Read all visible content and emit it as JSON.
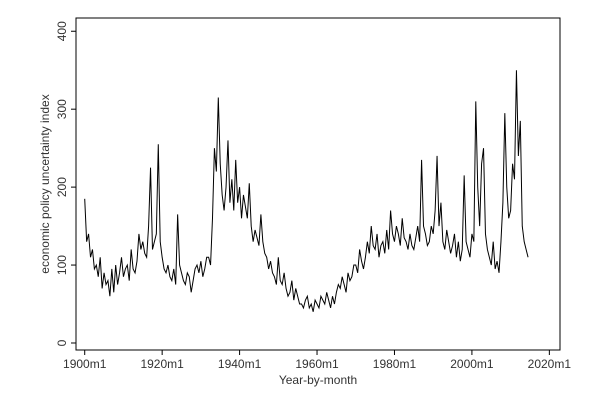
{
  "chart_data": {
    "type": "line",
    "xlabel": "Year-by-month",
    "ylabel": "economic policy uncertainty index",
    "color": "#000000",
    "xlim": [
      "1897m10",
      "2022m10"
    ],
    "xticks": [
      "1900m1",
      "1920m1",
      "1940m1",
      "1960m1",
      "1980m1",
      "2000m1",
      "2020m1"
    ],
    "ylim": [
      -9,
      417
    ],
    "yticks": [
      0,
      100,
      200,
      300,
      400
    ],
    "x": [
      "1900m1",
      "1900m7",
      "1901m1",
      "1901m7",
      "1902m1",
      "1902m7",
      "1903m1",
      "1903m7",
      "1904m1",
      "1904m7",
      "1905m1",
      "1905m7",
      "1906m1",
      "1906m7",
      "1907m1",
      "1907m7",
      "1908m1",
      "1908m7",
      "1909m1",
      "1909m7",
      "1910m1",
      "1910m7",
      "1911m1",
      "1911m7",
      "1912m1",
      "1912m7",
      "1913m1",
      "1913m7",
      "1914m1",
      "1914m7",
      "1915m1",
      "1915m7",
      "1916m1",
      "1916m7",
      "1917m1",
      "1917m7",
      "1918m1",
      "1918m7",
      "1919m1",
      "1919m7",
      "1920m1",
      "1920m7",
      "1921m1",
      "1921m7",
      "1922m1",
      "1922m7",
      "1923m1",
      "1923m7",
      "1924m1",
      "1924m7",
      "1925m1",
      "1925m7",
      "1926m1",
      "1926m7",
      "1927m1",
      "1927m7",
      "1928m1",
      "1928m7",
      "1929m1",
      "1929m7",
      "1930m1",
      "1930m7",
      "1931m1",
      "1931m7",
      "1932m1",
      "1932m7",
      "1933m1",
      "1933m7",
      "1934m1",
      "1934m7",
      "1935m1",
      "1935m7",
      "1936m1",
      "1936m7",
      "1937m1",
      "1937m7",
      "1938m1",
      "1938m7",
      "1939m1",
      "1939m7",
      "1940m1",
      "1940m7",
      "1941m1",
      "1941m7",
      "1942m1",
      "1942m7",
      "1943m1",
      "1943m7",
      "1944m1",
      "1944m7",
      "1945m1",
      "1945m7",
      "1946m1",
      "1946m7",
      "1947m1",
      "1947m7",
      "1948m1",
      "1948m7",
      "1949m1",
      "1949m7",
      "1950m1",
      "1950m7",
      "1951m1",
      "1951m7",
      "1952m1",
      "1952m7",
      "1953m1",
      "1953m7",
      "1954m1",
      "1954m7",
      "1955m1",
      "1955m7",
      "1956m1",
      "1956m7",
      "1957m1",
      "1957m7",
      "1958m1",
      "1958m7",
      "1959m1",
      "1959m7",
      "1960m1",
      "1960m7",
      "1961m1",
      "1961m7",
      "1962m1",
      "1962m7",
      "1963m1",
      "1963m7",
      "1964m1",
      "1964m7",
      "1965m1",
      "1965m7",
      "1966m1",
      "1966m7",
      "1967m1",
      "1967m7",
      "1968m1",
      "1968m7",
      "1969m1",
      "1969m7",
      "1970m1",
      "1970m7",
      "1971m1",
      "1971m7",
      "1972m1",
      "1972m7",
      "1973m1",
      "1973m7",
      "1974m1",
      "1974m7",
      "1975m1",
      "1975m7",
      "1976m1",
      "1976m7",
      "1977m1",
      "1977m7",
      "1978m1",
      "1978m7",
      "1979m1",
      "1979m7",
      "1980m1",
      "1980m7",
      "1981m1",
      "1981m7",
      "1982m1",
      "1982m7",
      "1983m1",
      "1983m7",
      "1984m1",
      "1984m7",
      "1985m1",
      "1985m7",
      "1986m1",
      "1986m7",
      "1987m1",
      "1987m7",
      "1988m1",
      "1988m7",
      "1989m1",
      "1989m7",
      "1990m1",
      "1990m7",
      "1991m1",
      "1991m7",
      "1992m1",
      "1992m7",
      "1993m1",
      "1993m7",
      "1994m1",
      "1994m7",
      "1995m1",
      "1995m7",
      "1996m1",
      "1996m7",
      "1997m1",
      "1997m7",
      "1998m1",
      "1998m7",
      "1999m1",
      "1999m7",
      "2000m1",
      "2000m7",
      "2001m1",
      "2001m7",
      "2002m1",
      "2002m7",
      "2003m1",
      "2003m7",
      "2004m1",
      "2004m7",
      "2005m1",
      "2005m7",
      "2006m1",
      "2006m7",
      "2007m1",
      "2007m7",
      "2008m1",
      "2008m7",
      "2009m1",
      "2009m7",
      "2010m1",
      "2010m7",
      "2011m1",
      "2011m7",
      "2012m1",
      "2012m7",
      "2013m1",
      "2013m7",
      "2014m1",
      "2014m7"
    ],
    "values": [
      185,
      130,
      140,
      110,
      120,
      95,
      100,
      85,
      110,
      70,
      90,
      75,
      80,
      60,
      95,
      65,
      100,
      75,
      90,
      110,
      85,
      95,
      100,
      80,
      120,
      95,
      90,
      105,
      140,
      120,
      130,
      115,
      110,
      150,
      225,
      120,
      130,
      140,
      255,
      130,
      110,
      95,
      90,
      100,
      85,
      80,
      95,
      75,
      165,
      100,
      90,
      80,
      75,
      90,
      85,
      65,
      80,
      95,
      100,
      90,
      105,
      85,
      95,
      110,
      110,
      100,
      160,
      250,
      220,
      315,
      230,
      190,
      170,
      200,
      260,
      180,
      210,
      170,
      235,
      180,
      200,
      160,
      190,
      175,
      160,
      205,
      150,
      130,
      145,
      135,
      125,
      165,
      130,
      115,
      110,
      95,
      105,
      90,
      85,
      75,
      110,
      80,
      75,
      90,
      70,
      60,
      65,
      80,
      55,
      70,
      60,
      50,
      50,
      45,
      55,
      60,
      45,
      50,
      40,
      55,
      50,
      45,
      60,
      55,
      50,
      65,
      55,
      45,
      60,
      50,
      65,
      75,
      70,
      85,
      75,
      65,
      90,
      80,
      85,
      100,
      100,
      90,
      120,
      105,
      95,
      110,
      130,
      115,
      150,
      125,
      120,
      140,
      110,
      125,
      130,
      115,
      145,
      120,
      170,
      140,
      130,
      150,
      140,
      125,
      160,
      135,
      130,
      120,
      140,
      125,
      120,
      135,
      150,
      130,
      235,
      150,
      140,
      125,
      130,
      150,
      140,
      170,
      240,
      150,
      180,
      130,
      120,
      145,
      130,
      115,
      125,
      140,
      110,
      130,
      105,
      120,
      215,
      130,
      120,
      110,
      140,
      130,
      310,
      200,
      150,
      230,
      250,
      140,
      120,
      110,
      100,
      130,
      95,
      105,
      90,
      130,
      180,
      295,
      200,
      160,
      170,
      230,
      210,
      350,
      240,
      285,
      150,
      130,
      120,
      110
    ]
  }
}
